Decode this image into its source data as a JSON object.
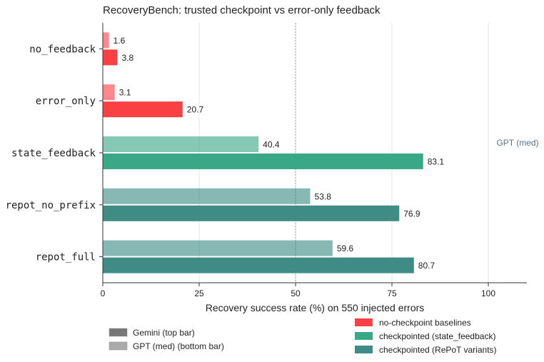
{
  "chart_data": {
    "type": "bar",
    "orientation": "horizontal",
    "title": "RecoveryBench: trusted checkpoint vs error-only feedback",
    "xlabel": "Recovery success rate (%) on 550 injected errors",
    "ylabel": "",
    "xlim": [
      0,
      110
    ],
    "xticks": [
      0,
      25,
      50,
      75,
      100
    ],
    "grid": "vertical",
    "reference_line": 50,
    "categories": [
      "no_feedback",
      "error_only",
      "state_feedback",
      "repot_no_prefix",
      "repot_full"
    ],
    "series": [
      {
        "name": "Gemini (top bar)",
        "values": [
          1.6,
          3.1,
          40.4,
          53.8,
          59.6
        ]
      },
      {
        "name": "GPT (med) (bottom bar)",
        "values": [
          3.8,
          20.7,
          83.1,
          76.9,
          80.7
        ]
      }
    ],
    "category_colors": [
      "#f94144",
      "#f94144",
      "#3aa886",
      "#3e8c85",
      "#3e8c85"
    ],
    "annotation": "GPT (med)",
    "annotation_color": "#5b7185",
    "legend_left": [
      "Gemini (top bar)",
      "GPT (med) (bottom bar)"
    ],
    "legend_right": [
      {
        "label": "no-checkpoint baselines",
        "color": "#f94144"
      },
      {
        "label": "checkpointed (state_feedback)",
        "color": "#3aa886"
      },
      {
        "label": "checkpointed (RePoT variants)",
        "color": "#3e8c85"
      }
    ],
    "legend_placement": "bottom"
  }
}
